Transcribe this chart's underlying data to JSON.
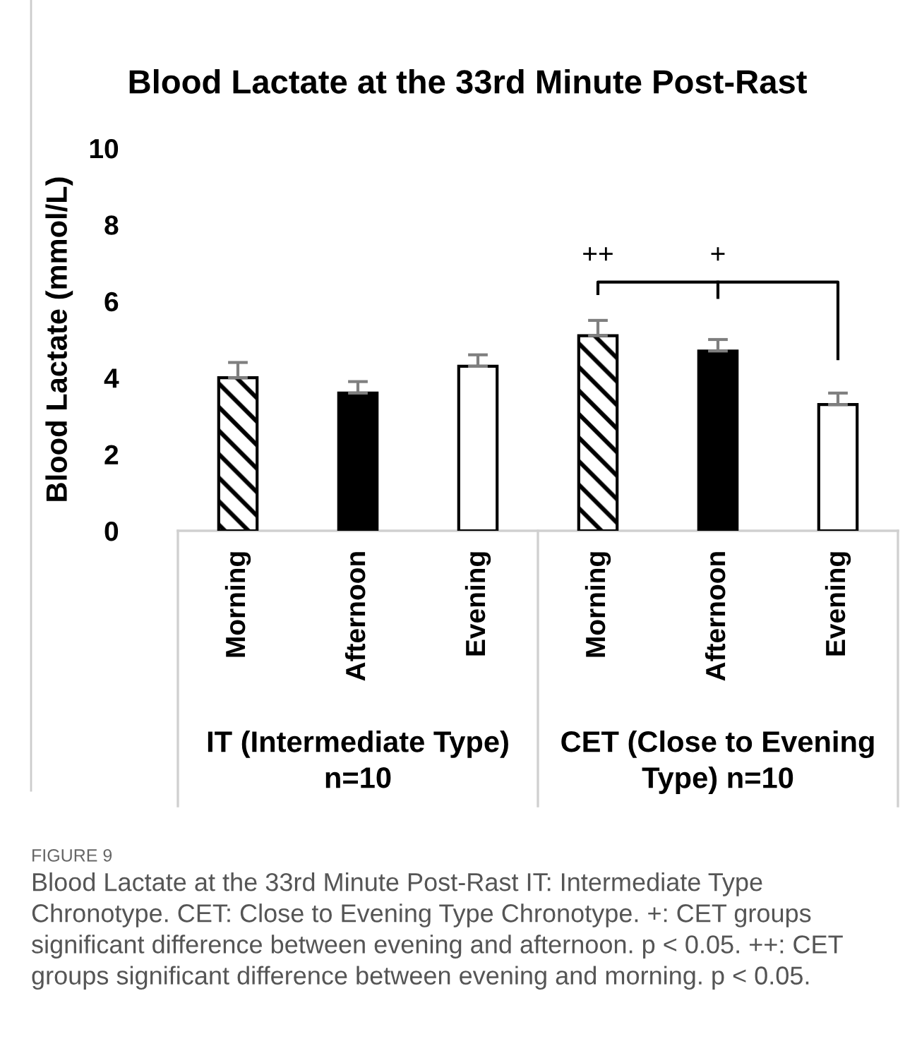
{
  "chart_data": {
    "type": "bar",
    "title": "Blood Lactate at the 33rd Minute Post-Rast",
    "ylabel": "Blood Lactate (mmol/L)",
    "categories": [
      "Morning",
      "Afternoon",
      "Evening",
      "Morning",
      "Afternoon",
      "Evening"
    ],
    "series": [
      {
        "color": "#000000",
        "values": [
          4.0,
          null,
          null,
          5.1,
          null,
          null
        ],
        "errors": [
          [
            4.0,
            4.4
          ],
          null,
          null,
          [
            5.1,
            5.5
          ],
          null,
          null
        ]
      },
      {
        "color": "#000000",
        "values": [
          null,
          3.6,
          null,
          null,
          4.7,
          null
        ],
        "errors": [
          null,
          [
            3.6,
            3.9
          ],
          null,
          null,
          [
            4.7,
            5.0
          ],
          null
        ]
      },
      {
        "color": "#ffffff",
        "values": [
          null,
          null,
          4.3,
          null,
          null,
          3.3
        ],
        "errors": [
          null,
          null,
          [
            4.3,
            4.6
          ],
          null,
          null,
          [
            3.3,
            3.6
          ]
        ]
      }
    ],
    "ylim": [
      0,
      10
    ],
    "yticks": [
      0,
      2,
      4,
      6,
      8,
      10
    ],
    "grid": false,
    "legend": false,
    "annotations": [
      "++",
      "+",
      "FIGURE 9",
      "Blood Lactate at the 33rd Minute Post-Rast IT: Intermediate Type Chronotype. CET: Close to Evening Type Chronotype. +: CET groups significant difference between evening and afternoon. p < 0.05. ++: CET groups significant difference between evening and morning. p < 0.05.",
      "IT (Intermediate Type)\nn=10",
      "CET (Close to Evening\nType) n=10"
    ]
  }
}
